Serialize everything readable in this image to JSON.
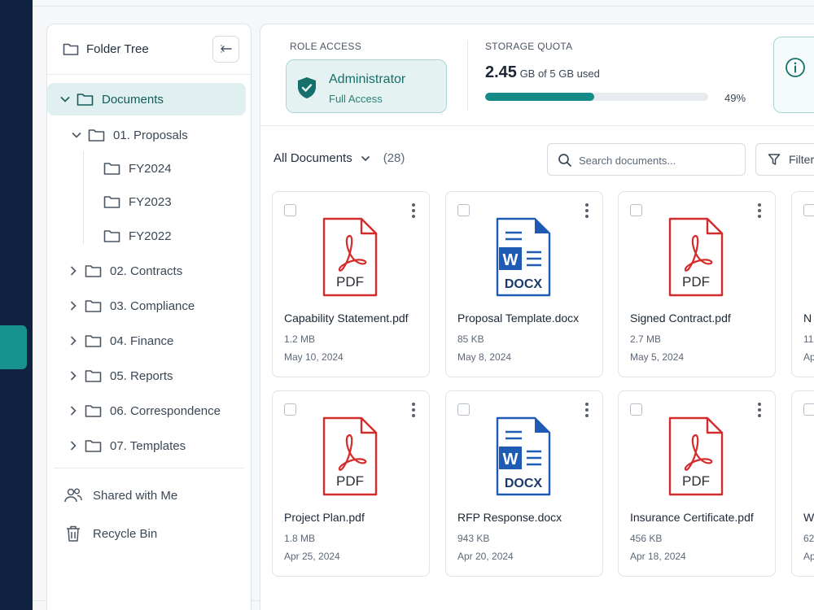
{
  "sidebar": {
    "title": "Folder Tree",
    "tree": [
      {
        "label": "Documents",
        "level": 0,
        "expanded": true,
        "selected": true
      },
      {
        "label": "01. Proposals",
        "level": 1,
        "expanded": true
      },
      {
        "label": "FY2024",
        "level": 2
      },
      {
        "label": "FY2023",
        "level": 2
      },
      {
        "label": "FY2022",
        "level": 2
      },
      {
        "label": "02. Contracts",
        "level": 1,
        "expanded": false
      },
      {
        "label": "03. Compliance",
        "level": 1,
        "expanded": false
      },
      {
        "label": "04. Finance",
        "level": 1,
        "expanded": false
      },
      {
        "label": "05. Reports",
        "level": 1,
        "expanded": false
      },
      {
        "label": "06. Correspondence",
        "level": 1,
        "expanded": false
      },
      {
        "label": "07. Templates",
        "level": 1,
        "expanded": false
      }
    ],
    "extras": [
      {
        "label": "Shared with Me",
        "icon": "users-icon"
      },
      {
        "label": "Recycle Bin",
        "icon": "trash-icon"
      }
    ]
  },
  "role": {
    "label": "ROLE ACCESS",
    "name": "Administrator",
    "sub": "Full Access"
  },
  "quota": {
    "label": "STORAGE QUOTA",
    "used": "2.45",
    "rest": "GB of 5 GB used",
    "percent_label": "49%",
    "fraction": 0.49
  },
  "toolbar": {
    "title": "All Documents",
    "count": "(28)",
    "search_placeholder": "Search documents...",
    "filter_label": "Filter"
  },
  "files": [
    {
      "name": "Capability Statement.pdf",
      "type": "PDF",
      "size": "1.2 MB",
      "date": "May 10, 2024"
    },
    {
      "name": "Proposal Template.docx",
      "type": "DOCX",
      "size": "85 KB",
      "date": "May 8, 2024"
    },
    {
      "name": "Signed Contract.pdf",
      "type": "PDF",
      "size": "2.7 MB",
      "date": "May 5, 2024"
    },
    {
      "name": "N",
      "type": "PDF",
      "size": "11",
      "date": "Ap"
    },
    {
      "name": "Project Plan.pdf",
      "type": "PDF",
      "size": "1.8 MB",
      "date": "Apr 25, 2024"
    },
    {
      "name": "RFP Response.docx",
      "type": "DOCX",
      "size": "943 KB",
      "date": "Apr 20, 2024"
    },
    {
      "name": "Insurance Certificate.pdf",
      "type": "PDF",
      "size": "456 KB",
      "date": "Apr 18, 2024"
    },
    {
      "name": "W",
      "type": "PDF",
      "size": "62",
      "date": "Ap"
    }
  ],
  "colors": {
    "nav": "#0f2340",
    "accent": "#17928c",
    "pdf": "#d42b2b",
    "docx": "#1e5bb5"
  }
}
